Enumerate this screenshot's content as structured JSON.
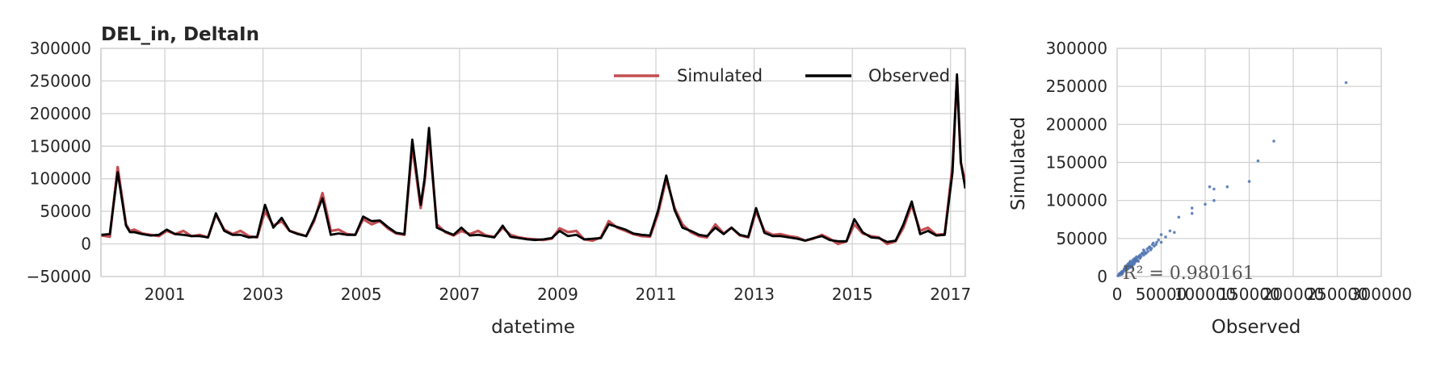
{
  "chart_data": [
    {
      "type": "line",
      "title": "DEL_in, DeltaIn",
      "xlabel": "datetime",
      "ylabel": "",
      "xlim": [
        1999.7,
        2017.3
      ],
      "ylim": [
        -50000,
        300000
      ],
      "xticks": [
        2001,
        2003,
        2005,
        2007,
        2009,
        2011,
        2013,
        2015,
        2017
      ],
      "xtick_labels": [
        "2001",
        "2003",
        "2005",
        "2007",
        "2009",
        "2011",
        "2013",
        "2015",
        "2017"
      ],
      "yticks": [
        -50000,
        0,
        50000,
        100000,
        150000,
        200000,
        250000,
        300000
      ],
      "ytick_labels": [
        "−50000",
        "0",
        "50000",
        "100000",
        "150000",
        "200000",
        "250000",
        "300000"
      ],
      "grid": true,
      "legend_position": "top-right",
      "series": [
        {
          "name": "Simulated",
          "color": "#c44e52",
          "x": [
            1999.71,
            1999.88,
            2000.04,
            2000.21,
            2000.29,
            2000.38,
            2000.54,
            2000.71,
            2000.88,
            2001.04,
            2001.21,
            2001.38,
            2001.54,
            2001.71,
            2001.88,
            2002.04,
            2002.21,
            2002.38,
            2002.54,
            2002.71,
            2002.88,
            2003.04,
            2003.21,
            2003.38,
            2003.54,
            2003.71,
            2003.88,
            2004.04,
            2004.21,
            2004.38,
            2004.54,
            2004.71,
            2004.88,
            2005.04,
            2005.21,
            2005.38,
            2005.54,
            2005.71,
            2005.88,
            2006.04,
            2006.21,
            2006.29,
            2006.38,
            2006.54,
            2006.71,
            2006.88,
            2007.04,
            2007.21,
            2007.38,
            2007.54,
            2007.71,
            2007.88,
            2008.04,
            2008.21,
            2008.38,
            2008.54,
            2008.71,
            2008.88,
            2009.04,
            2009.21,
            2009.38,
            2009.54,
            2009.71,
            2009.88,
            2010.04,
            2010.21,
            2010.38,
            2010.54,
            2010.71,
            2010.88,
            2011.04,
            2011.21,
            2011.38,
            2011.54,
            2011.71,
            2011.88,
            2012.04,
            2012.21,
            2012.38,
            2012.54,
            2012.71,
            2012.88,
            2013.04,
            2013.21,
            2013.38,
            2013.54,
            2013.71,
            2013.88,
            2014.04,
            2014.21,
            2014.38,
            2014.54,
            2014.71,
            2014.88,
            2015.04,
            2015.21,
            2015.38,
            2015.54,
            2015.71,
            2015.88,
            2016.04,
            2016.21,
            2016.38,
            2016.54,
            2016.71,
            2016.88,
            2017.04,
            2017.13,
            2017.21,
            2017.3
          ],
          "values": [
            13000,
            11000,
            118000,
            30000,
            20000,
            22000,
            16000,
            14000,
            12000,
            20000,
            15000,
            20000,
            12000,
            14000,
            10000,
            45000,
            22000,
            15000,
            20000,
            12000,
            10000,
            50000,
            28000,
            35000,
            20000,
            16000,
            12000,
            35000,
            78000,
            20000,
            22000,
            15000,
            14000,
            38000,
            30000,
            35000,
            24000,
            16000,
            14000,
            150000,
            55000,
            95000,
            165000,
            30000,
            18000,
            13000,
            20000,
            15000,
            20000,
            13000,
            11000,
            25000,
            14000,
            10000,
            8000,
            7000,
            6000,
            8000,
            24000,
            18000,
            20000,
            7000,
            5000,
            10000,
            35000,
            25000,
            20000,
            15000,
            12000,
            11000,
            45000,
            100000,
            55000,
            30000,
            18000,
            12000,
            10000,
            30000,
            16000,
            25000,
            13000,
            10000,
            50000,
            20000,
            14000,
            15000,
            12000,
            10000,
            5000,
            8000,
            14000,
            8000,
            0,
            4000,
            30000,
            16000,
            12000,
            10000,
            0,
            4000,
            25000,
            60000,
            20000,
            25000,
            14000,
            15000,
            120000,
            255000,
            125000,
            95000
          ]
        },
        {
          "name": "Observed",
          "color": "#000000",
          "x": [
            1999.71,
            1999.88,
            2000.04,
            2000.21,
            2000.29,
            2000.38,
            2000.54,
            2000.71,
            2000.88,
            2001.04,
            2001.21,
            2001.38,
            2001.54,
            2001.71,
            2001.88,
            2002.04,
            2002.21,
            2002.38,
            2002.54,
            2002.71,
            2002.88,
            2003.04,
            2003.21,
            2003.38,
            2003.54,
            2003.71,
            2003.88,
            2004.04,
            2004.21,
            2004.38,
            2004.54,
            2004.71,
            2004.88,
            2005.04,
            2005.21,
            2005.38,
            2005.54,
            2005.71,
            2005.88,
            2006.04,
            2006.21,
            2006.29,
            2006.38,
            2006.54,
            2006.71,
            2006.88,
            2007.04,
            2007.21,
            2007.38,
            2007.54,
            2007.71,
            2007.88,
            2008.04,
            2008.21,
            2008.38,
            2008.54,
            2008.71,
            2008.88,
            2009.04,
            2009.21,
            2009.38,
            2009.54,
            2009.71,
            2009.88,
            2010.04,
            2010.21,
            2010.38,
            2010.54,
            2010.71,
            2010.88,
            2011.04,
            2011.21,
            2011.38,
            2011.54,
            2011.71,
            2011.88,
            2012.04,
            2012.21,
            2012.38,
            2012.54,
            2012.71,
            2012.88,
            2013.04,
            2013.21,
            2013.38,
            2013.54,
            2013.71,
            2013.88,
            2014.04,
            2014.21,
            2014.38,
            2014.54,
            2014.71,
            2014.88,
            2015.04,
            2015.21,
            2015.38,
            2015.54,
            2015.71,
            2015.88,
            2016.04,
            2016.21,
            2016.38,
            2016.54,
            2016.71,
            2016.88,
            2017.04,
            2017.13,
            2017.21,
            2017.3
          ],
          "values": [
            14000,
            15000,
            110000,
            28000,
            18000,
            18000,
            15000,
            13000,
            14000,
            22000,
            15000,
            14000,
            12000,
            12000,
            10000,
            47000,
            20000,
            14000,
            14000,
            10000,
            11000,
            60000,
            25000,
            40000,
            20000,
            15000,
            12000,
            38000,
            70000,
            14000,
            16000,
            14000,
            14000,
            42000,
            35000,
            36000,
            26000,
            17000,
            15000,
            160000,
            60000,
            100000,
            178000,
            25000,
            19000,
            14000,
            25000,
            13000,
            14000,
            12000,
            10000,
            28000,
            11000,
            9000,
            7000,
            6000,
            7000,
            9000,
            20000,
            12000,
            14000,
            7000,
            8000,
            9000,
            30000,
            26000,
            22000,
            16000,
            14000,
            13000,
            50000,
            105000,
            52000,
            25000,
            20000,
            14000,
            12000,
            25000,
            15000,
            25000,
            14000,
            11000,
            55000,
            17000,
            12000,
            12000,
            10000,
            8000,
            5000,
            9000,
            12000,
            6000,
            4000,
            4000,
            38000,
            18000,
            10000,
            9000,
            3000,
            5000,
            30000,
            65000,
            15000,
            20000,
            13000,
            14000,
            110000,
            260000,
            125000,
            85000
          ]
        }
      ]
    },
    {
      "type": "scatter",
      "title": "",
      "xlabel": "Observed",
      "ylabel": "Simulated",
      "xlim": [
        0,
        300000
      ],
      "ylim": [
        0,
        300000
      ],
      "xticks": [
        0,
        50000,
        100000,
        150000,
        200000,
        250000,
        300000
      ],
      "xtick_labels": [
        "0",
        "50000",
        "100000",
        "150000",
        "200000",
        "250000",
        "300000"
      ],
      "yticks": [
        0,
        50000,
        100000,
        150000,
        200000,
        250000,
        300000
      ],
      "ytick_labels": [
        "0",
        "50000",
        "100000",
        "150000",
        "200000",
        "250000",
        "300000"
      ],
      "grid": true,
      "point_color": "#4c72b0",
      "annotation": "R² = 0.980161",
      "points": [
        [
          3000,
          2000
        ],
        [
          4000,
          5000
        ],
        [
          5000,
          3000
        ],
        [
          6000,
          7000
        ],
        [
          7000,
          6000
        ],
        [
          8000,
          9000
        ],
        [
          9000,
          8000
        ],
        [
          10000,
          11000
        ],
        [
          10000,
          14000
        ],
        [
          11000,
          10000
        ],
        [
          12000,
          13000
        ],
        [
          12000,
          16000
        ],
        [
          13000,
          11000
        ],
        [
          13000,
          15000
        ],
        [
          14000,
          12000
        ],
        [
          14000,
          18000
        ],
        [
          15000,
          14000
        ],
        [
          15000,
          20000
        ],
        [
          16000,
          15000
        ],
        [
          16000,
          12000
        ],
        [
          17000,
          19000
        ],
        [
          18000,
          16000
        ],
        [
          18000,
          22000
        ],
        [
          19000,
          20000
        ],
        [
          20000,
          18000
        ],
        [
          20000,
          24000
        ],
        [
          21000,
          20000
        ],
        [
          22000,
          22000
        ],
        [
          22000,
          26000
        ],
        [
          24000,
          20000
        ],
        [
          25000,
          27000
        ],
        [
          26000,
          24000
        ],
        [
          28000,
          30000
        ],
        [
          30000,
          28000
        ],
        [
          30000,
          35000
        ],
        [
          32000,
          30000
        ],
        [
          35000,
          33000
        ],
        [
          36000,
          38000
        ],
        [
          38000,
          35000
        ],
        [
          40000,
          42000
        ],
        [
          42000,
          40000
        ],
        [
          45000,
          45000
        ],
        [
          47000,
          48000
        ],
        [
          50000,
          55000
        ],
        [
          50000,
          45000
        ],
        [
          55000,
          52000
        ],
        [
          60000,
          60000
        ],
        [
          65000,
          58000
        ],
        [
          70000,
          78000
        ],
        [
          85000,
          90000
        ],
        [
          85000,
          83000
        ],
        [
          100000,
          95000
        ],
        [
          105000,
          118000
        ],
        [
          110000,
          115000
        ],
        [
          110000,
          100000
        ],
        [
          125000,
          118000
        ],
        [
          150000,
          125000
        ],
        [
          160000,
          152000
        ],
        [
          178000,
          178000
        ],
        [
          260000,
          255000
        ],
        [
          1000,
          1000
        ],
        [
          2000,
          3000
        ],
        [
          3000,
          4000
        ],
        [
          5000,
          6000
        ],
        [
          6000,
          4000
        ],
        [
          8000,
          10000
        ],
        [
          9000,
          12000
        ],
        [
          11000,
          9000
        ],
        [
          12000,
          10000
        ],
        [
          13000,
          17000
        ],
        [
          14000,
          14000
        ],
        [
          16000,
          18000
        ],
        [
          17000,
          14000
        ],
        [
          19000,
          16000
        ],
        [
          20000,
          21000
        ],
        [
          21000,
          23000
        ],
        [
          23000,
          21000
        ],
        [
          24000,
          25000
        ],
        [
          26000,
          28000
        ],
        [
          27000,
          26000
        ],
        [
          29000,
          31000
        ],
        [
          31000,
          33000
        ],
        [
          33000,
          31000
        ],
        [
          34000,
          36000
        ],
        [
          37000,
          39000
        ],
        [
          39000,
          37000
        ],
        [
          41000,
          44000
        ],
        [
          44000,
          42000
        ]
      ]
    }
  ]
}
